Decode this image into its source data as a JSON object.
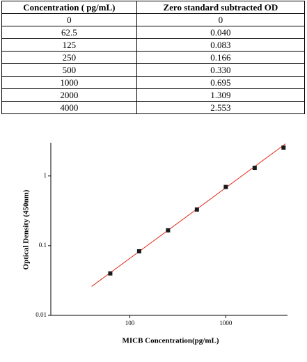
{
  "table": {
    "header": [
      "Concentration ( pg/mL)",
      "Zero standard subtracted OD"
    ],
    "rows": [
      [
        "0",
        "0"
      ],
      [
        "62.5",
        "0.040"
      ],
      [
        "125",
        "0.083"
      ],
      [
        "250",
        "0.166"
      ],
      [
        "500",
        "0.330"
      ],
      [
        "1000",
        "0.695"
      ],
      [
        "2000",
        "1.309"
      ],
      [
        "4000",
        "2.553"
      ]
    ]
  },
  "chart_data": {
    "type": "scatter",
    "xlabel": "MICB  Concentration(pg/mL)",
    "ylabel": "Optical Density (450nm)",
    "x": [
      62.5,
      125,
      250,
      500,
      1000,
      2000,
      4000
    ],
    "series": [
      {
        "color": "#1a1a1a",
        "values": [
          0.04,
          0.083,
          0.166,
          0.33,
          0.695,
          1.309,
          2.553
        ]
      }
    ],
    "fit_line": {
      "color": "#e02a1a",
      "x": [
        40,
        4200
      ],
      "y": [
        0.026,
        2.9
      ]
    },
    "log_x": true,
    "log_y": true,
    "xlim": [
      15,
      4400
    ],
    "ylim": [
      0.01,
      3
    ],
    "xticks": [
      100,
      1000
    ],
    "yticks": [
      0.01,
      0.1,
      1
    ]
  }
}
